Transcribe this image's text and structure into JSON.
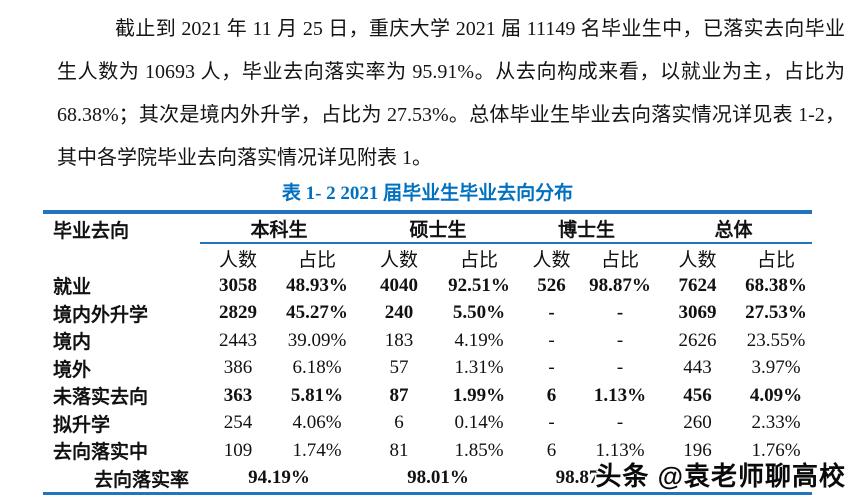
{
  "paragraph": {
    "text": "截止到 2021 年 11 月 25 日，重庆大学 2021 届 11149 名毕业生中，已落实去向毕业生人数为 10693 人，毕业去向落实率为 95.91%。从去向构成来看，以就业为主，占比为 68.38%；其次是境内外升学，占比为 27.53%。总体毕业生毕业去向落实情况详见表 1-2，其中各学院毕业去向落实情况详见附表 1。"
  },
  "table": {
    "title": "表 1- 2 2021 届毕业生毕业去向分布",
    "title_color": "#0070C0",
    "line_color": "#2274BF",
    "header": {
      "destination": "毕业去向",
      "groups": [
        {
          "label": "本科生"
        },
        {
          "label": "硕士生"
        },
        {
          "label": "博士生"
        },
        {
          "label": "总体"
        }
      ],
      "count_label": "人数",
      "ratio_label": "占比"
    },
    "rows": [
      {
        "label": "就业",
        "bold": true,
        "values": [
          "3058",
          "48.93%",
          "4040",
          "92.51%",
          "526",
          "98.87%",
          "7624",
          "68.38%"
        ]
      },
      {
        "label": "境内外升学",
        "bold": true,
        "values": [
          "2829",
          "45.27%",
          "240",
          "5.50%",
          "-",
          "-",
          "3069",
          "27.53%"
        ]
      },
      {
        "label": "境内",
        "bold": false,
        "values": [
          "2443",
          "39.09%",
          "183",
          "4.19%",
          "-",
          "-",
          "2626",
          "23.55%"
        ]
      },
      {
        "label": "境外",
        "bold": false,
        "values": [
          "386",
          "6.18%",
          "57",
          "1.31%",
          "-",
          "-",
          "443",
          "3.97%"
        ]
      },
      {
        "label": "未落实去向",
        "bold": true,
        "values": [
          "363",
          "5.81%",
          "87",
          "1.99%",
          "6",
          "1.13%",
          "456",
          "4.09%"
        ]
      },
      {
        "label": "拟升学",
        "bold": false,
        "values": [
          "254",
          "4.06%",
          "6",
          "0.14%",
          "-",
          "-",
          "260",
          "2.33%"
        ]
      },
      {
        "label": "去向落实中",
        "bold": false,
        "values": [
          "109",
          "1.74%",
          "81",
          "1.85%",
          "6",
          "1.13%",
          "196",
          "1.76%"
        ]
      }
    ],
    "footer": {
      "label": "去向落实率",
      "values": [
        "94.19%",
        "98.01%",
        "98.87%",
        ""
      ]
    }
  },
  "watermark": {
    "text": "头条 @袁老师聊高校"
  }
}
